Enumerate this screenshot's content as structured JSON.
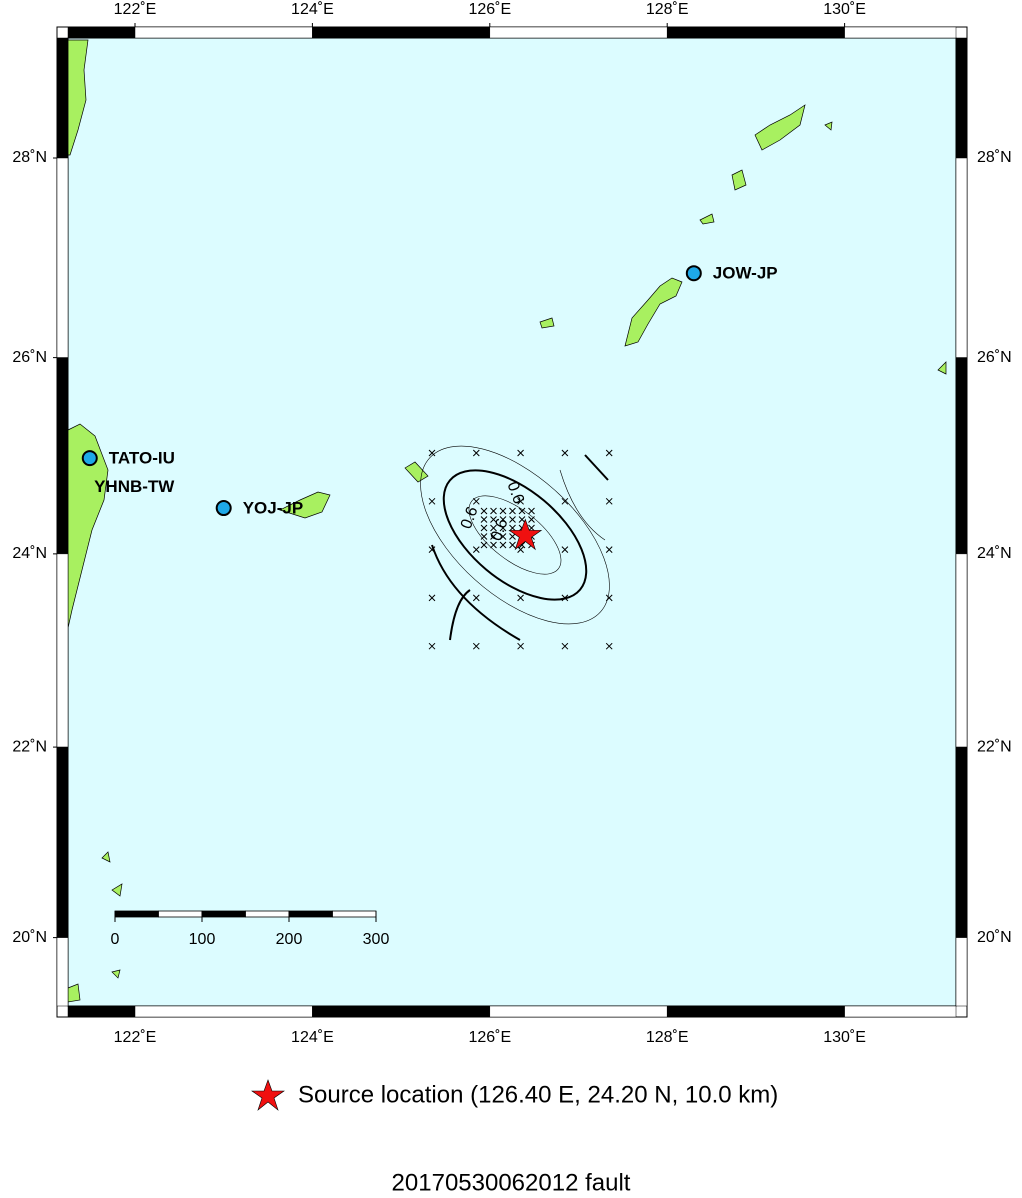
{
  "map": {
    "lon_ticks": [
      {
        "value": 122,
        "label": "122˚E"
      },
      {
        "value": 124,
        "label": "124˚E"
      },
      {
        "value": 126,
        "label": "126˚E"
      },
      {
        "value": 128,
        "label": "128˚E"
      },
      {
        "value": 130,
        "label": "130˚E"
      }
    ],
    "lat_ticks": [
      {
        "value": 20,
        "label": "20˚N"
      },
      {
        "value": 22,
        "label": "22˚N"
      },
      {
        "value": 24,
        "label": "24˚N"
      },
      {
        "value": 26,
        "label": "26˚N"
      },
      {
        "value": 28,
        "label": "28˚N"
      }
    ],
    "stations": [
      {
        "name": "TATO-IU",
        "lon": 121.49,
        "lat": 24.98
      },
      {
        "name": "YOJ-JP",
        "lon": 123.0,
        "lat": 24.47
      },
      {
        "name": "JOW-JP",
        "lon": 128.3,
        "lat": 26.85
      }
    ],
    "station_labels": [
      {
        "name": "YHNB-TW",
        "lon": 121.55,
        "lat": 24.7
      }
    ],
    "scale_ticks": [
      0,
      100,
      200,
      300
    ],
    "contour_labels": [
      "0.6",
      "0.6",
      "0.6"
    ],
    "legend": "Source location (126.40 E, 24.20 N, 10.0 km)",
    "title": "20170530062012 fault"
  }
}
